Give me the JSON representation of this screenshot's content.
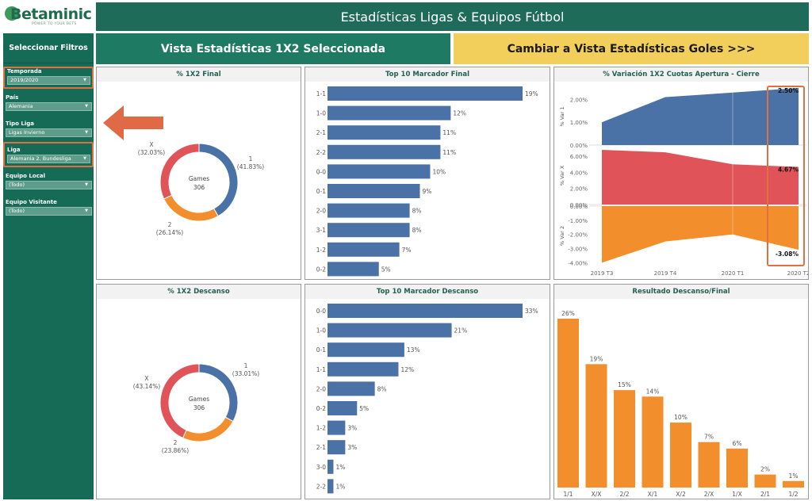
{
  "logo": {
    "name": "Betaminic",
    "tagline": "POWER TO YOUR BETS"
  },
  "header": {
    "title": "Estadísticas Ligas & Equipos Fútbol"
  },
  "buttons": {
    "current_view": "Vista Estadísticas 1X2 Seleccionada",
    "switch_view": "Cambiar a Vista Estadísticas Goles >>>"
  },
  "sidebar": {
    "title": "Seleccionar Filtros",
    "filters": [
      {
        "label": "Temporada",
        "value": "2019/2020",
        "highlighted": true
      },
      {
        "label": "País",
        "value": "Alemania",
        "highlighted": false
      },
      {
        "label": "Tipo Liga",
        "value": "Ligas Invierno",
        "highlighted": false
      },
      {
        "label": "Liga",
        "value": "Alemania 2. Bundesliga",
        "highlighted": true
      },
      {
        "label": "Equipo Local",
        "value": "(Todo)",
        "highlighted": false
      },
      {
        "label": "Equipo Visitante",
        "value": "(Todo)",
        "highlighted": false
      }
    ]
  },
  "colors": {
    "home": "#4a72a6",
    "draw": "#e05459",
    "away": "#f28e2b",
    "accent": "#e07040",
    "header": "#1e6b5a"
  },
  "panels": {
    "final_1x2": {
      "title": "% 1X2 Final",
      "center_label": "Games",
      "center_value": "306"
    },
    "final_top10": {
      "title": "Top 10 Marcador Final"
    },
    "variation": {
      "title": "% Variación 1X2 Cuotas Apertura - Cierre"
    },
    "half_1x2": {
      "title": "% 1X2 Descanso",
      "center_label": "Games",
      "center_value": "306"
    },
    "half_top10": {
      "title": "Top 10 Marcador Descanso"
    },
    "half_final": {
      "title": "Resultado Descanso/Final"
    }
  },
  "chart_data": [
    {
      "type": "pie",
      "title": "% 1X2 Final",
      "slices": [
        {
          "name": "1",
          "value": 41.83,
          "label": "(41.83%)",
          "color": "#4a72a6"
        },
        {
          "name": "2",
          "value": 26.14,
          "label": "(26.14%)",
          "color": "#f28e2b"
        },
        {
          "name": "X",
          "value": 32.03,
          "label": "(32.03%)",
          "color": "#e05459"
        }
      ]
    },
    {
      "type": "bar",
      "title": "Top 10 Marcador Final",
      "categories": [
        "1-1",
        "1-0",
        "2-1",
        "2-2",
        "0-0",
        "0-1",
        "2-0",
        "3-1",
        "1-2",
        "0-2"
      ],
      "values": [
        19,
        12,
        11,
        11,
        10,
        9,
        8,
        8,
        7,
        5
      ],
      "labels": [
        "19%",
        "12%",
        "11%",
        "11%",
        "10%",
        "9%",
        "8%",
        "8%",
        "7%",
        "5%"
      ]
    },
    {
      "type": "area",
      "title": "% Variación 1X2 Cuotas Apertura - Cierre",
      "x": [
        "2019 T3",
        "2019 T4",
        "2020 T1",
        "2020 T2"
      ],
      "series": [
        {
          "name": "% Var 1",
          "values": [
            1.0,
            2.1,
            2.3,
            2.5
          ],
          "end_label": "2.50%",
          "ticks": [
            "2.00%",
            "1.00%",
            "0.00%"
          ],
          "ylim": [
            0,
            2.5
          ]
        },
        {
          "name": "% Var X",
          "values": [
            6.8,
            6.5,
            5.0,
            4.67
          ],
          "end_label": "4.67%",
          "ticks": [
            "6.00%",
            "4.00%",
            "2.00%",
            "0.00%"
          ],
          "ylim": [
            0,
            7.2
          ]
        },
        {
          "name": "% Var 2",
          "values": [
            -4.0,
            -2.5,
            -2.0,
            -3.08
          ],
          "end_label": "-3.08%",
          "ticks": [
            "0.00%",
            "-1.00%",
            "-2.00%",
            "-3.00%",
            "-4.00%"
          ],
          "ylim": [
            -4.2,
            0
          ]
        }
      ]
    },
    {
      "type": "pie",
      "title": "% 1X2 Descanso",
      "slices": [
        {
          "name": "1",
          "value": 33.01,
          "label": "(33.01%)",
          "color": "#4a72a6"
        },
        {
          "name": "2",
          "value": 23.86,
          "label": "(23.86%)",
          "color": "#f28e2b"
        },
        {
          "name": "X",
          "value": 43.14,
          "label": "(43.14%)",
          "color": "#e05459"
        }
      ]
    },
    {
      "type": "bar",
      "title": "Top 10 Marcador Descanso",
      "categories": [
        "0-0",
        "1-0",
        "0-1",
        "1-1",
        "2-0",
        "0-2",
        "1-2",
        "2-1",
        "3-0",
        "2-2"
      ],
      "values": [
        33,
        21,
        13,
        12,
        8,
        5,
        3,
        3,
        1,
        1
      ],
      "labels": [
        "33%",
        "21%",
        "13%",
        "12%",
        "8%",
        "5%",
        "3%",
        "3%",
        "1%",
        "1%"
      ]
    },
    {
      "type": "bar",
      "title": "Resultado Descanso/Final",
      "categories": [
        "1/1",
        "X/X",
        "2/2",
        "X/1",
        "X/2",
        "2/X",
        "1/X",
        "2/1",
        "1/2"
      ],
      "values": [
        26,
        19,
        15,
        14,
        10,
        7,
        6,
        2,
        1
      ],
      "labels": [
        "26%",
        "19%",
        "15%",
        "14%",
        "10%",
        "7%",
        "6%",
        "2%",
        "1%"
      ]
    }
  ]
}
